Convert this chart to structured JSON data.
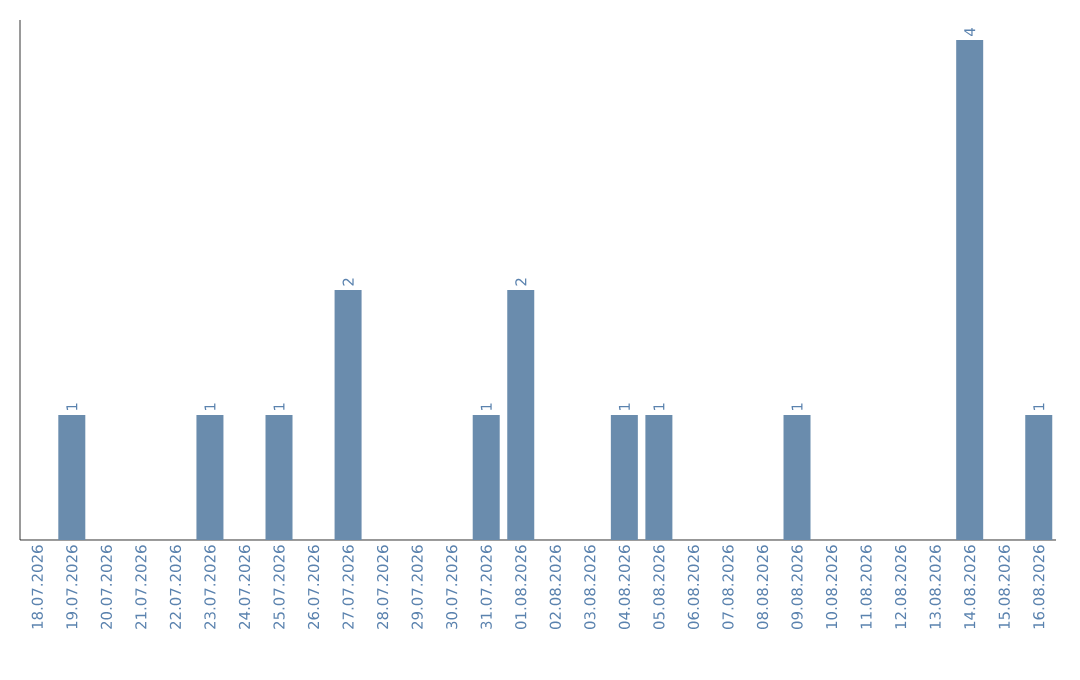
{
  "chart_data": {
    "type": "bar",
    "categories": [
      "18.07.2026",
      "19.07.2026",
      "20.07.2026",
      "21.07.2026",
      "22.07.2026",
      "23.07.2026",
      "24.07.2026",
      "25.07.2026",
      "26.07.2026",
      "27.07.2026",
      "28.07.2026",
      "29.07.2026",
      "30.07.2026",
      "31.07.2026",
      "01.08.2026",
      "02.08.2026",
      "03.08.2026",
      "04.08.2026",
      "05.08.2026",
      "06.08.2026",
      "07.08.2026",
      "08.08.2026",
      "09.08.2026",
      "10.08.2026",
      "11.08.2026",
      "12.08.2026",
      "13.08.2026",
      "14.08.2026",
      "15.08.2026",
      "16.08.2026"
    ],
    "values": [
      0,
      1,
      0,
      0,
      0,
      1,
      0,
      1,
      0,
      2,
      0,
      0,
      0,
      1,
      2,
      0,
      0,
      1,
      1,
      0,
      0,
      0,
      1,
      0,
      0,
      0,
      0,
      4,
      0,
      1
    ],
    "value_labels": [
      null,
      "1",
      null,
      null,
      null,
      "1",
      null,
      "1",
      null,
      "2",
      null,
      null,
      null,
      "1",
      "2",
      null,
      null,
      "1",
      "1",
      null,
      null,
      null,
      "1",
      null,
      null,
      null,
      null,
      "4",
      null,
      "1"
    ],
    "color": "#6a8cad",
    "ylim": [
      0,
      4
    ],
    "tick_labels": "x"
  }
}
